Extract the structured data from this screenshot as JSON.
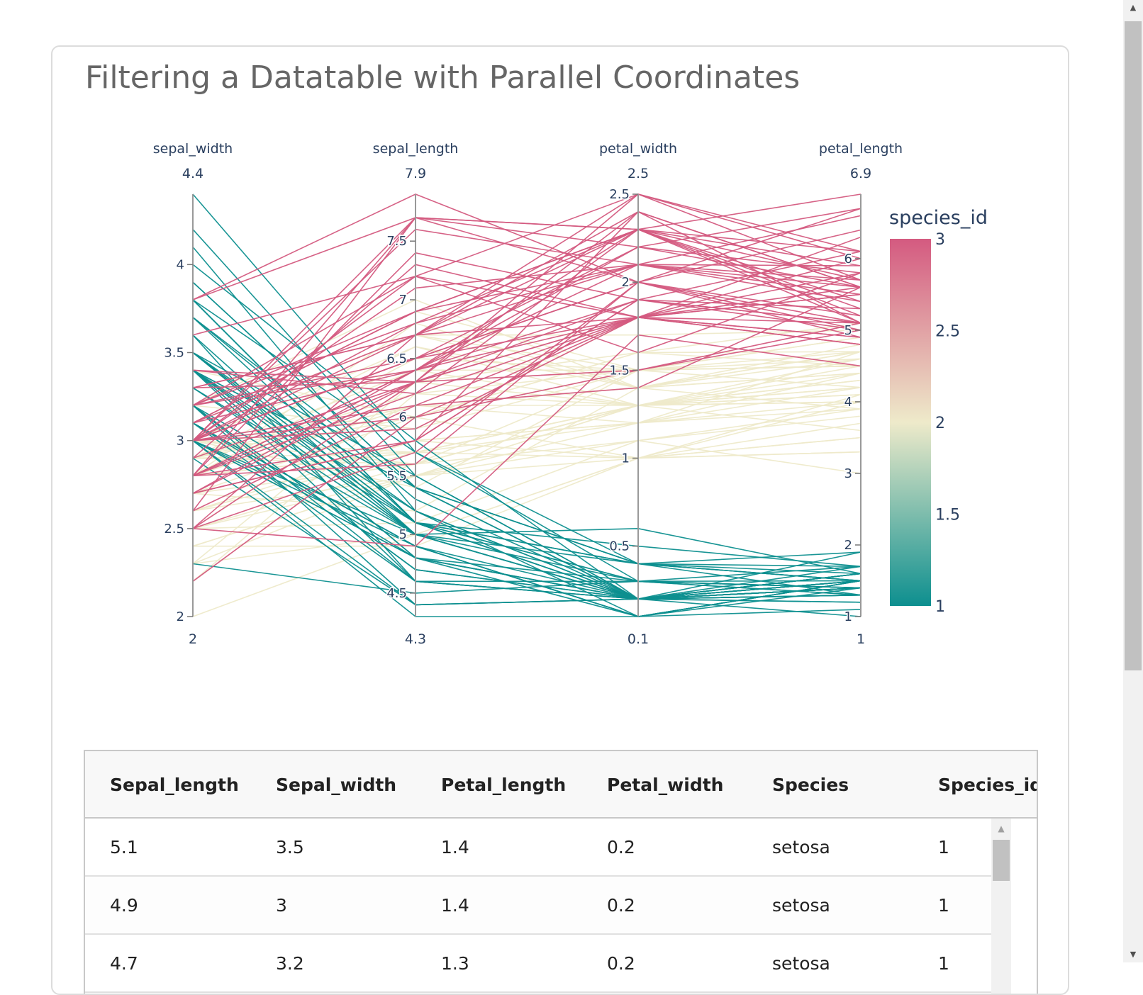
{
  "page": {
    "title": "Filtering a Datatable with Parallel Coordinates"
  },
  "chart_data": {
    "type": "parallel-coordinates",
    "dimensions": [
      {
        "label": "sepal_width",
        "range": [
          2,
          4.4
        ],
        "min_label": "2",
        "max_label": "4.4",
        "ticks": [
          2,
          2.5,
          3,
          3.5,
          4
        ],
        "tick_labels": [
          "2",
          "2.5",
          "3",
          "3.5",
          "4"
        ]
      },
      {
        "label": "sepal_length",
        "range": [
          4.3,
          7.9
        ],
        "min_label": "4.3",
        "max_label": "7.9",
        "ticks": [
          4.5,
          5,
          5.5,
          6,
          6.5,
          7,
          7.5
        ],
        "tick_labels": [
          "4.5",
          "5",
          "5.5",
          "6",
          "6.5",
          "7",
          "7.5"
        ]
      },
      {
        "label": "petal_width",
        "range": [
          0.1,
          2.5
        ],
        "min_label": "0.1",
        "max_label": "2.5",
        "ticks": [
          0.5,
          1,
          1.5,
          2,
          2.5
        ],
        "tick_labels": [
          "0.5",
          "1",
          "1.5",
          "2",
          "2.5"
        ]
      },
      {
        "label": "petal_length",
        "range": [
          1,
          6.9
        ],
        "min_label": "1",
        "max_label": "6.9",
        "ticks": [
          1,
          2,
          3,
          4,
          5,
          6
        ],
        "tick_labels": [
          "1",
          "2",
          "3",
          "4",
          "5",
          "6"
        ]
      }
    ],
    "color_variable": "species_id",
    "colorbar": {
      "title": "species_id",
      "range": [
        1,
        3
      ],
      "ticks": [
        1,
        1.5,
        2,
        2.5,
        3
      ],
      "tick_labels": [
        "1",
        "1.5",
        "2",
        "2.5",
        "3"
      ],
      "colors": [
        "#0d8f8f",
        "#eeeaca",
        "#d45a80"
      ]
    },
    "records": [
      [
        5.1,
        3.5,
        1.4,
        0.2,
        1
      ],
      [
        4.9,
        3.0,
        1.4,
        0.2,
        1
      ],
      [
        4.7,
        3.2,
        1.3,
        0.2,
        1
      ],
      [
        4.6,
        3.1,
        1.5,
        0.2,
        1
      ],
      [
        5.0,
        3.6,
        1.4,
        0.2,
        1
      ],
      [
        5.4,
        3.9,
        1.7,
        0.4,
        1
      ],
      [
        4.6,
        3.4,
        1.4,
        0.3,
        1
      ],
      [
        5.0,
        3.4,
        1.5,
        0.2,
        1
      ],
      [
        4.4,
        2.9,
        1.4,
        0.2,
        1
      ],
      [
        4.9,
        3.1,
        1.5,
        0.1,
        1
      ],
      [
        5.4,
        3.7,
        1.5,
        0.2,
        1
      ],
      [
        4.8,
        3.4,
        1.6,
        0.2,
        1
      ],
      [
        4.8,
        3.0,
        1.4,
        0.1,
        1
      ],
      [
        4.3,
        3.0,
        1.1,
        0.1,
        1
      ],
      [
        5.8,
        4.0,
        1.2,
        0.2,
        1
      ],
      [
        5.7,
        4.4,
        1.5,
        0.4,
        1
      ],
      [
        5.4,
        3.9,
        1.3,
        0.4,
        1
      ],
      [
        5.1,
        3.5,
        1.4,
        0.3,
        1
      ],
      [
        5.7,
        3.8,
        1.7,
        0.3,
        1
      ],
      [
        5.1,
        3.8,
        1.5,
        0.3,
        1
      ],
      [
        5.4,
        3.4,
        1.7,
        0.2,
        1
      ],
      [
        5.1,
        3.7,
        1.5,
        0.4,
        1
      ],
      [
        4.6,
        3.6,
        1.0,
        0.2,
        1
      ],
      [
        5.1,
        3.3,
        1.7,
        0.5,
        1
      ],
      [
        4.8,
        3.4,
        1.9,
        0.2,
        1
      ],
      [
        5.0,
        3.0,
        1.6,
        0.2,
        1
      ],
      [
        5.0,
        3.4,
        1.6,
        0.4,
        1
      ],
      [
        5.2,
        3.5,
        1.5,
        0.2,
        1
      ],
      [
        5.2,
        3.4,
        1.4,
        0.2,
        1
      ],
      [
        4.7,
        3.2,
        1.6,
        0.2,
        1
      ],
      [
        4.8,
        3.1,
        1.6,
        0.2,
        1
      ],
      [
        5.4,
        3.4,
        1.5,
        0.4,
        1
      ],
      [
        5.2,
        4.1,
        1.5,
        0.1,
        1
      ],
      [
        5.5,
        4.2,
        1.4,
        0.2,
        1
      ],
      [
        4.9,
        3.1,
        1.5,
        0.1,
        1
      ],
      [
        5.0,
        3.2,
        1.2,
        0.2,
        1
      ],
      [
        5.5,
        3.5,
        1.3,
        0.2,
        1
      ],
      [
        4.9,
        3.1,
        1.5,
        0.1,
        1
      ],
      [
        4.4,
        3.0,
        1.3,
        0.2,
        1
      ],
      [
        5.1,
        3.4,
        1.5,
        0.2,
        1
      ],
      [
        5.0,
        3.5,
        1.3,
        0.3,
        1
      ],
      [
        4.5,
        2.3,
        1.3,
        0.3,
        1
      ],
      [
        4.4,
        3.2,
        1.3,
        0.2,
        1
      ],
      [
        5.0,
        3.5,
        1.6,
        0.6,
        1
      ],
      [
        5.1,
        3.8,
        1.9,
        0.4,
        1
      ],
      [
        4.8,
        3.0,
        1.4,
        0.3,
        1
      ],
      [
        5.1,
        3.8,
        1.6,
        0.2,
        1
      ],
      [
        4.6,
        3.2,
        1.4,
        0.2,
        1
      ],
      [
        5.3,
        3.7,
        1.5,
        0.2,
        1
      ],
      [
        5.0,
        3.3,
        1.4,
        0.2,
        1
      ],
      [
        7.0,
        3.2,
        4.7,
        1.4,
        2
      ],
      [
        6.4,
        3.2,
        4.5,
        1.5,
        2
      ],
      [
        6.9,
        3.1,
        4.9,
        1.5,
        2
      ],
      [
        5.5,
        2.3,
        4.0,
        1.3,
        2
      ],
      [
        6.5,
        2.8,
        4.6,
        1.5,
        2
      ],
      [
        5.7,
        2.8,
        4.5,
        1.3,
        2
      ],
      [
        6.3,
        3.3,
        4.7,
        1.6,
        2
      ],
      [
        4.9,
        2.4,
        3.3,
        1.0,
        2
      ],
      [
        6.6,
        2.9,
        4.6,
        1.3,
        2
      ],
      [
        5.2,
        2.7,
        3.9,
        1.4,
        2
      ],
      [
        5.0,
        2.0,
        3.5,
        1.0,
        2
      ],
      [
        5.9,
        3.0,
        4.2,
        1.5,
        2
      ],
      [
        6.0,
        2.2,
        4.0,
        1.0,
        2
      ],
      [
        6.1,
        2.9,
        4.7,
        1.4,
        2
      ],
      [
        5.6,
        2.9,
        3.6,
        1.3,
        2
      ],
      [
        6.7,
        3.1,
        4.4,
        1.4,
        2
      ],
      [
        5.6,
        3.0,
        4.5,
        1.5,
        2
      ],
      [
        5.8,
        2.7,
        4.1,
        1.0,
        2
      ],
      [
        6.2,
        2.2,
        4.5,
        1.5,
        2
      ],
      [
        5.6,
        2.5,
        3.9,
        1.1,
        2
      ],
      [
        5.9,
        3.2,
        4.8,
        1.8,
        2
      ],
      [
        6.1,
        2.8,
        4.0,
        1.3,
        2
      ],
      [
        6.3,
        2.5,
        4.9,
        1.5,
        2
      ],
      [
        6.1,
        2.8,
        4.7,
        1.2,
        2
      ],
      [
        6.4,
        2.9,
        4.3,
        1.3,
        2
      ],
      [
        6.6,
        3.0,
        4.4,
        1.4,
        2
      ],
      [
        6.8,
        2.8,
        4.8,
        1.4,
        2
      ],
      [
        6.7,
        3.0,
        5.0,
        1.7,
        2
      ],
      [
        6.0,
        2.9,
        4.5,
        1.5,
        2
      ],
      [
        5.7,
        2.6,
        3.5,
        1.0,
        2
      ],
      [
        5.5,
        2.4,
        3.8,
        1.1,
        2
      ],
      [
        5.5,
        2.4,
        3.7,
        1.0,
        2
      ],
      [
        5.8,
        2.7,
        3.9,
        1.2,
        2
      ],
      [
        6.0,
        2.7,
        5.1,
        1.6,
        2
      ],
      [
        5.4,
        3.0,
        4.5,
        1.5,
        2
      ],
      [
        6.0,
        3.4,
        4.5,
        1.6,
        2
      ],
      [
        6.7,
        3.1,
        4.7,
        1.5,
        2
      ],
      [
        6.3,
        2.3,
        4.4,
        1.3,
        2
      ],
      [
        5.6,
        3.0,
        4.1,
        1.3,
        2
      ],
      [
        5.5,
        2.5,
        4.0,
        1.3,
        2
      ],
      [
        5.5,
        2.6,
        4.4,
        1.2,
        2
      ],
      [
        6.1,
        3.0,
        4.6,
        1.4,
        2
      ],
      [
        5.8,
        2.6,
        4.0,
        1.2,
        2
      ],
      [
        5.0,
        2.3,
        3.3,
        1.0,
        2
      ],
      [
        5.6,
        2.7,
        4.2,
        1.3,
        2
      ],
      [
        5.7,
        3.0,
        4.2,
        1.2,
        2
      ],
      [
        5.7,
        2.9,
        4.2,
        1.3,
        2
      ],
      [
        6.2,
        2.9,
        4.3,
        1.3,
        2
      ],
      [
        5.1,
        2.5,
        3.0,
        1.1,
        2
      ],
      [
        5.7,
        2.8,
        4.1,
        1.3,
        2
      ],
      [
        6.3,
        3.3,
        6.0,
        2.5,
        3
      ],
      [
        5.8,
        2.7,
        5.1,
        1.9,
        3
      ],
      [
        7.1,
        3.0,
        5.9,
        2.1,
        3
      ],
      [
        6.3,
        2.9,
        5.6,
        1.8,
        3
      ],
      [
        6.5,
        3.0,
        5.8,
        2.2,
        3
      ],
      [
        7.6,
        3.0,
        6.6,
        2.1,
        3
      ],
      [
        4.9,
        2.5,
        4.5,
        1.7,
        3
      ],
      [
        7.3,
        2.9,
        6.3,
        1.8,
        3
      ],
      [
        6.7,
        2.5,
        5.8,
        1.8,
        3
      ],
      [
        7.2,
        3.6,
        6.1,
        2.5,
        3
      ],
      [
        6.5,
        3.2,
        5.1,
        2.0,
        3
      ],
      [
        6.4,
        2.7,
        5.3,
        1.9,
        3
      ],
      [
        6.8,
        3.0,
        5.5,
        2.1,
        3
      ],
      [
        5.7,
        2.5,
        5.0,
        2.0,
        3
      ],
      [
        5.8,
        2.8,
        5.1,
        2.4,
        3
      ],
      [
        6.4,
        3.2,
        5.3,
        2.3,
        3
      ],
      [
        6.5,
        3.0,
        5.5,
        1.8,
        3
      ],
      [
        7.7,
        3.8,
        6.7,
        2.2,
        3
      ],
      [
        7.7,
        2.6,
        6.9,
        2.3,
        3
      ],
      [
        6.0,
        2.2,
        5.0,
        1.5,
        3
      ],
      [
        6.9,
        3.2,
        5.7,
        2.3,
        3
      ],
      [
        5.6,
        2.8,
        4.9,
        2.0,
        3
      ],
      [
        7.7,
        2.8,
        6.7,
        2.0,
        3
      ],
      [
        6.3,
        2.7,
        4.9,
        1.8,
        3
      ],
      [
        6.7,
        3.3,
        5.7,
        2.1,
        3
      ],
      [
        7.2,
        3.2,
        6.0,
        1.8,
        3
      ],
      [
        6.2,
        2.8,
        4.8,
        1.8,
        3
      ],
      [
        6.1,
        3.0,
        4.9,
        1.8,
        3
      ],
      [
        6.4,
        2.8,
        5.6,
        2.1,
        3
      ],
      [
        7.2,
        3.0,
        5.8,
        1.6,
        3
      ],
      [
        7.4,
        2.8,
        6.1,
        1.9,
        3
      ],
      [
        7.9,
        3.8,
        6.4,
        2.0,
        3
      ],
      [
        6.4,
        2.8,
        5.6,
        2.2,
        3
      ],
      [
        6.3,
        2.8,
        5.1,
        1.5,
        3
      ],
      [
        6.1,
        2.6,
        5.6,
        1.4,
        3
      ],
      [
        7.7,
        3.0,
        6.1,
        2.3,
        3
      ],
      [
        6.3,
        3.4,
        5.6,
        2.4,
        3
      ],
      [
        6.4,
        3.1,
        5.5,
        1.8,
        3
      ],
      [
        6.0,
        3.0,
        4.8,
        1.8,
        3
      ],
      [
        6.9,
        3.1,
        5.4,
        2.1,
        3
      ],
      [
        6.7,
        3.1,
        5.6,
        2.4,
        3
      ],
      [
        6.9,
        3.1,
        5.1,
        2.3,
        3
      ],
      [
        5.8,
        2.7,
        5.1,
        1.9,
        3
      ],
      [
        6.8,
        3.2,
        5.9,
        2.3,
        3
      ],
      [
        6.7,
        3.3,
        5.7,
        2.5,
        3
      ],
      [
        6.7,
        3.0,
        5.2,
        2.3,
        3
      ],
      [
        6.3,
        2.5,
        5.0,
        1.9,
        3
      ],
      [
        6.5,
        3.0,
        5.2,
        2.0,
        3
      ],
      [
        6.2,
        3.4,
        5.4,
        2.3,
        3
      ],
      [
        5.9,
        3.0,
        5.1,
        1.8,
        3
      ]
    ]
  },
  "table": {
    "columns": [
      "Sepal_length",
      "Sepal_width",
      "Petal_length",
      "Petal_width",
      "Species",
      "Species_id"
    ],
    "rows": [
      [
        "5.1",
        "3.5",
        "1.4",
        "0.2",
        "setosa",
        "1"
      ],
      [
        "4.9",
        "3",
        "1.4",
        "0.2",
        "setosa",
        "1"
      ],
      [
        "4.7",
        "3.2",
        "1.3",
        "0.2",
        "setosa",
        "1"
      ]
    ]
  }
}
